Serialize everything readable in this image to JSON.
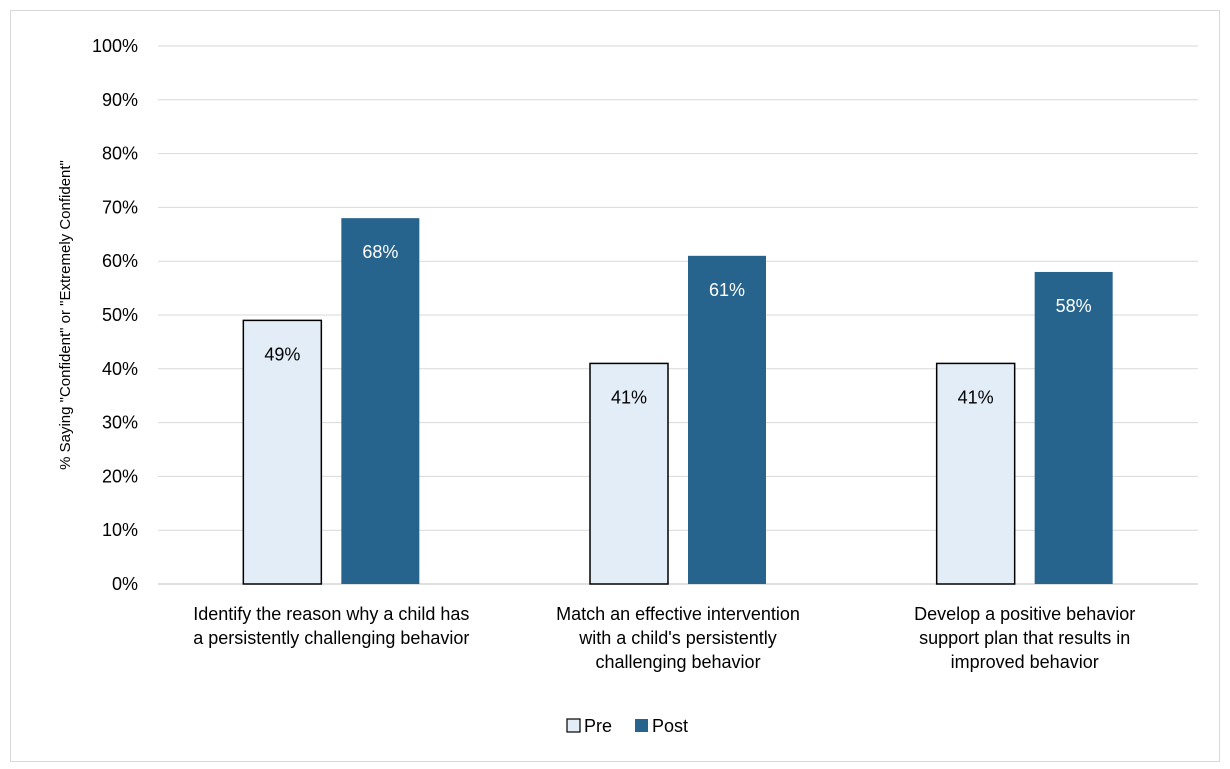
{
  "chart_data": {
    "type": "bar",
    "title": "",
    "xlabel": "",
    "ylabel": "% Saying \"Confident\" or \"Extremely Confident\"",
    "ylim": [
      0,
      100
    ],
    "yticks": [
      "0%",
      "10%",
      "20%",
      "30%",
      "40%",
      "50%",
      "60%",
      "70%",
      "80%",
      "90%",
      "100%"
    ],
    "grid": true,
    "legend_position": "bottom",
    "categories": [
      [
        "Identify the reason why a child has",
        "a persistently challenging behavior"
      ],
      [
        "Match an effective intervention",
        "with a child's persistently",
        "challenging behavior"
      ],
      [
        "Develop a positive behavior",
        "support plan that results in",
        "improved behavior"
      ]
    ],
    "series": [
      {
        "name": "Pre",
        "values": [
          49,
          41,
          41
        ],
        "labels": [
          "49%",
          "41%",
          "41%"
        ],
        "color": "#e3edf8",
        "stroke": "#000000",
        "label_color": "#000000"
      },
      {
        "name": "Post",
        "values": [
          68,
          61,
          58
        ],
        "labels": [
          "68%",
          "61%",
          "58%"
        ],
        "color": "#26648d",
        "stroke": "none",
        "label_color": "#ffffff"
      }
    ]
  }
}
